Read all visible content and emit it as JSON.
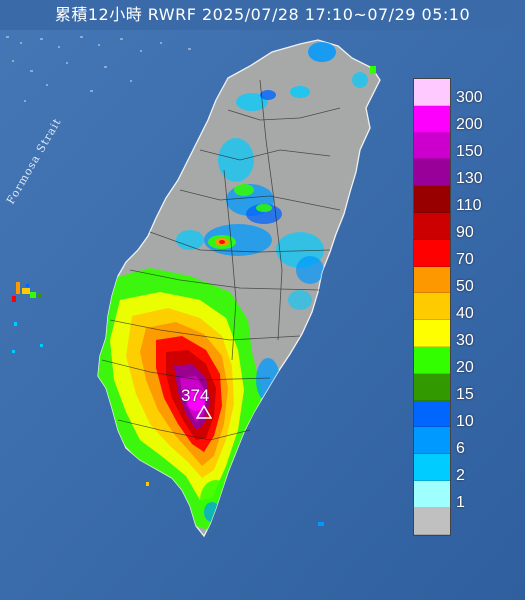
{
  "header": {
    "title": "累積12小時 RWRF 2025/07/28 17:10~07/29 05:10"
  },
  "map": {
    "sea_label": "Formosa Strait",
    "peak": {
      "value": "374",
      "marker": "triangle-icon"
    },
    "colors": {
      "sea": "#3b6cad",
      "land": "#a7a9a9",
      "title_bar": "#3a6aa8"
    }
  },
  "legend": {
    "levels": [
      {
        "label": "300",
        "color": "#fec9fe"
      },
      {
        "label": "200",
        "color": "#fd00fd"
      },
      {
        "label": "150",
        "color": "#cc00cc"
      },
      {
        "label": "130",
        "color": "#990099"
      },
      {
        "label": "110",
        "color": "#980000"
      },
      {
        "label": "90",
        "color": "#cc0000"
      },
      {
        "label": "70",
        "color": "#fe0000"
      },
      {
        "label": "50",
        "color": "#fd9800"
      },
      {
        "label": "40",
        "color": "#fecb00"
      },
      {
        "label": "30",
        "color": "#fefe00"
      },
      {
        "label": "20",
        "color": "#33fe00"
      },
      {
        "label": "15",
        "color": "#339900"
      },
      {
        "label": "10",
        "color": "#0066fe"
      },
      {
        "label": "6",
        "color": "#0099ff"
      },
      {
        "label": "2",
        "color": "#00ccff"
      },
      {
        "label": "1",
        "color": "#9ffefe"
      },
      {
        "label": "",
        "color": "#c0c0c0"
      }
    ]
  }
}
